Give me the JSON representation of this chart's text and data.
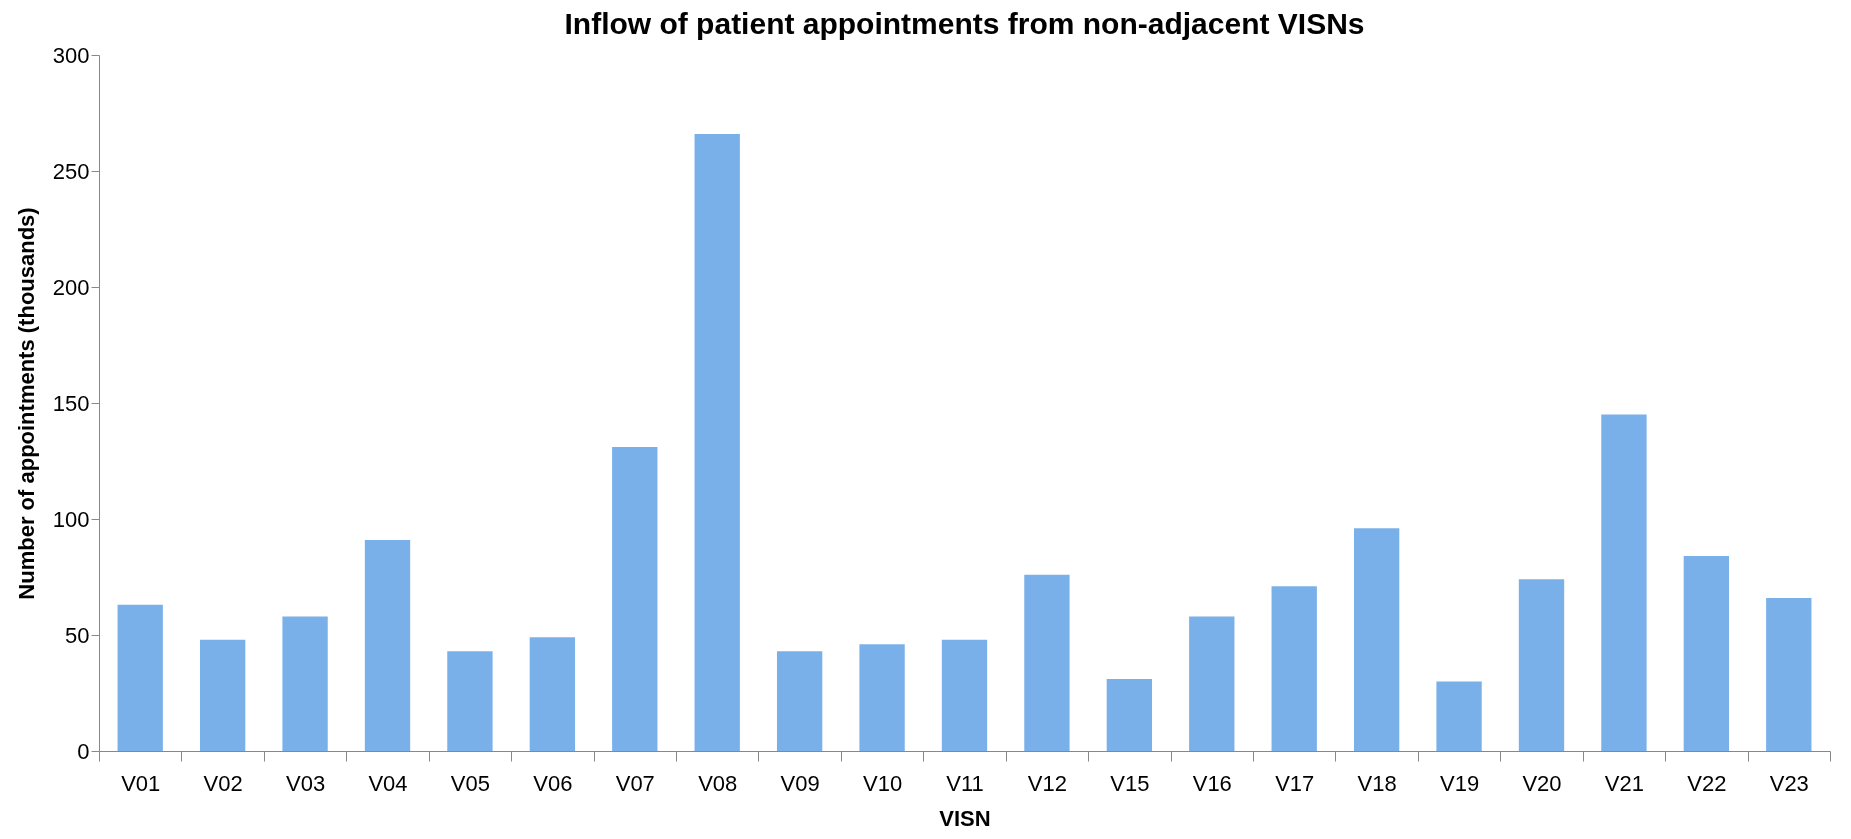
{
  "chart_data": {
    "type": "bar",
    "title": "Inflow of patient appointments from non-adjacent VISNs",
    "xlabel": "VISN",
    "ylabel": "Number of appointments (thousands)",
    "categories": [
      "V01",
      "V02",
      "V03",
      "V04",
      "V05",
      "V06",
      "V07",
      "V08",
      "V09",
      "V10",
      "V11",
      "V12",
      "V15",
      "V16",
      "V17",
      "V18",
      "V19",
      "V20",
      "V21",
      "V22",
      "V23"
    ],
    "values": [
      63,
      48,
      58,
      91,
      43,
      49,
      131,
      266,
      43,
      46,
      48,
      76,
      31,
      58,
      71,
      96,
      30,
      74,
      145,
      84,
      66
    ],
    "color": "#7ab0ea",
    "ylim": [
      0,
      300
    ],
    "yticks": [
      0,
      50,
      100,
      150,
      200,
      250,
      300
    ],
    "grid": false
  }
}
